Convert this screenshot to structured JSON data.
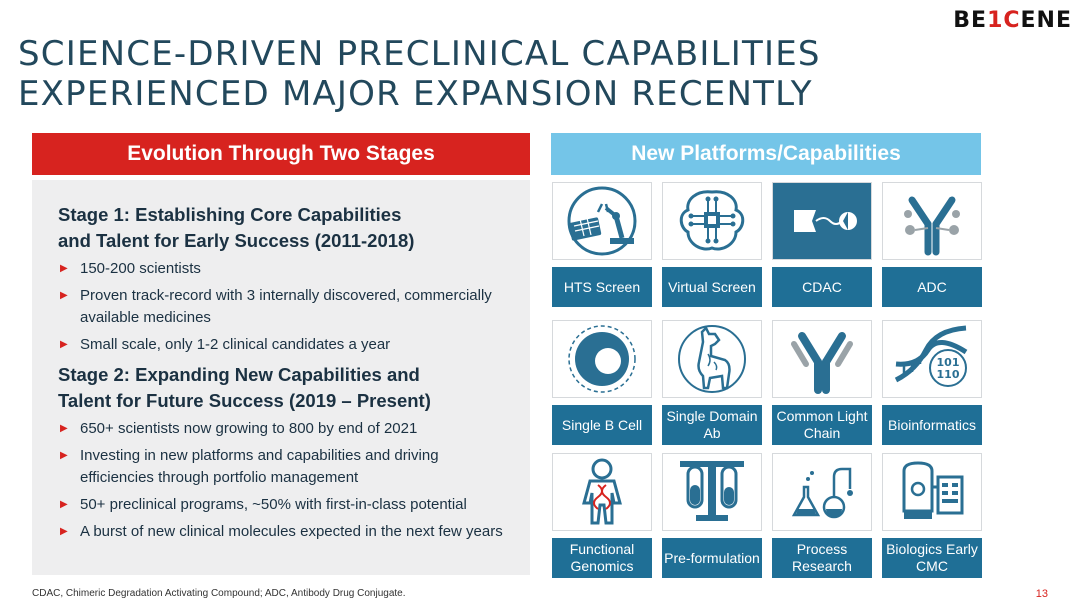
{
  "logo": {
    "part1": "BE",
    "part2": "1",
    "part3": "C",
    "part4": "ENE"
  },
  "title": {
    "line1": "SCIENCE-DRIVEN PRECLINICAL CAPABILITIES",
    "line2": "EXPERIENCED MAJOR EXPANSION RECENTLY"
  },
  "left": {
    "header": "Evolution Through Two Stages",
    "stage1": {
      "title_line1": "Stage 1: Establishing Core Capabilities",
      "title_line2": "and Talent for Early Success (2011-2018)",
      "bullets": [
        "150-200 scientists",
        "Proven track-record with 3 internally discovered, commercially available medicines",
        "Small scale, only 1-2 clinical candidates a year"
      ]
    },
    "stage2": {
      "title_line1": "Stage 2: Expanding New Capabilities and",
      "title_line2": "Talent for Future Success (2019 – Present)",
      "bullets": [
        "650+ scientists now growing to 800 by end of 2021",
        "Investing in new platforms and capabilities and driving efficiencies through portfolio management",
        "50+ preclinical programs, ~50% with first-in-class potential",
        "A burst of new clinical molecules expected in the next few years"
      ]
    }
  },
  "right": {
    "header": "New Platforms/Capabilities",
    "tiles": [
      {
        "label": "HTS Screen",
        "icon": "robot-arm-icon"
      },
      {
        "label": "Virtual Screen",
        "icon": "chip-brain-icon"
      },
      {
        "label": "CDAC",
        "icon": "degrader-icon"
      },
      {
        "label": "ADC",
        "icon": "antibody-drug-icon"
      },
      {
        "label": "Single B Cell",
        "icon": "b-cell-icon"
      },
      {
        "label": "Single Domain Ab",
        "icon": "llama-icon"
      },
      {
        "label": "Common Light Chain",
        "icon": "antibody-icon"
      },
      {
        "label": "Bioinformatics",
        "icon": "dna-binary-icon"
      },
      {
        "label": "Functional Genomics",
        "icon": "human-dna-icon"
      },
      {
        "label": "Pre-formulation",
        "icon": "test-tubes-icon"
      },
      {
        "label": "Process Research",
        "icon": "flasks-icon"
      },
      {
        "label": "Biologics Early CMC",
        "icon": "bioreactor-icon"
      }
    ]
  },
  "footnote": "CDAC, Chimeric Degradation Activating Compound; ADC, Antibody Drug Conjugate.",
  "page_number": "13",
  "colors": {
    "red": "#d7231f",
    "blue_header": "#74c5e8",
    "tile_blue": "#1f6f96",
    "icon_blue": "#2a6f93"
  }
}
